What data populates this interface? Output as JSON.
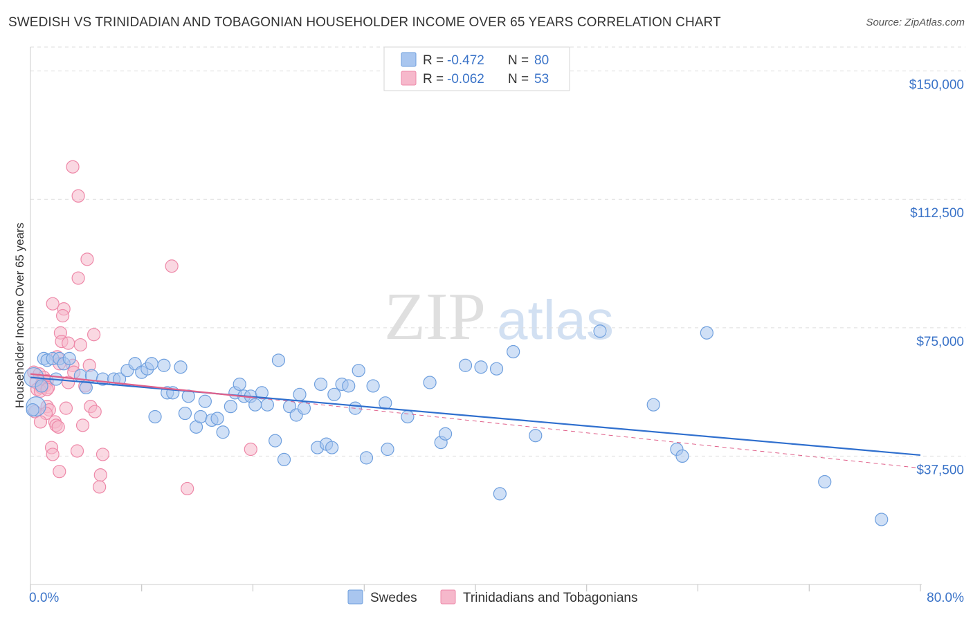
{
  "title": "SWEDISH VS TRINIDADIAN AND TOBAGONIAN HOUSEHOLDER INCOME OVER 65 YEARS CORRELATION CHART",
  "source": "Source: ZipAtlas.com",
  "watermark": {
    "zip": "ZIP",
    "atlas": "atlas"
  },
  "legend": {
    "r_label": "R =",
    "n_label": "N =",
    "rows": [
      {
        "r": "-0.472",
        "n": "80"
      },
      {
        "r": "-0.062",
        "n": "53"
      }
    ]
  },
  "bottom_legend": [
    "Swedes",
    "Trinidadians and Tobagonians"
  ],
  "colors": {
    "blue_fill": "#a9c6ef",
    "blue_stroke": "#6e9fde",
    "blue_line": "#2f6fce",
    "pink_fill": "#f6b8cb",
    "pink_stroke": "#ee88a8",
    "pink_line": "#e0608a",
    "axis_text": "#3a73c8",
    "grid": "#dddddd"
  },
  "chart_data": {
    "type": "scatter",
    "title": "SWEDISH VS TRINIDADIAN AND TOBAGONIAN HOUSEHOLDER INCOME OVER 65 YEARS CORRELATION CHART",
    "xlabel": "",
    "ylabel": "Householder Income Over 65 years",
    "xlim": [
      0,
      80
    ],
    "ylim": [
      0,
      157000
    ],
    "x_ticks_labels": [
      "0.0%",
      "80.0%"
    ],
    "y_ticks": [
      37500,
      75000,
      112500,
      150000
    ],
    "y_tick_labels": [
      "$37,500",
      "$75,000",
      "$112,500",
      "$150,000"
    ],
    "series": [
      {
        "name": "Swedes",
        "r": -0.472,
        "n": 80,
        "trend": {
          "x0": 0,
          "y0": 60500,
          "x1": 80,
          "y1": 37800
        },
        "points": [
          [
            0.3,
            60500
          ],
          [
            0.5,
            52000
          ],
          [
            1.2,
            66000
          ],
          [
            1.5,
            65500
          ],
          [
            2.0,
            66000
          ],
          [
            2.6,
            66000
          ],
          [
            3.0,
            64500
          ],
          [
            3.5,
            66000
          ],
          [
            4.5,
            61000
          ],
          [
            5.0,
            57500
          ],
          [
            5.5,
            61000
          ],
          [
            6.5,
            60000
          ],
          [
            7.5,
            60000
          ],
          [
            8.0,
            60000
          ],
          [
            8.7,
            62500
          ],
          [
            9.4,
            64500
          ],
          [
            10.0,
            62000
          ],
          [
            10.5,
            63000
          ],
          [
            10.9,
            64500
          ],
          [
            11.2,
            49000
          ],
          [
            12.0,
            64000
          ],
          [
            12.3,
            56000
          ],
          [
            12.8,
            56000
          ],
          [
            13.5,
            63500
          ],
          [
            13.9,
            50000
          ],
          [
            14.2,
            55000
          ],
          [
            14.9,
            46000
          ],
          [
            15.3,
            49000
          ],
          [
            15.7,
            53500
          ],
          [
            16.3,
            48000
          ],
          [
            16.8,
            48500
          ],
          [
            17.3,
            44500
          ],
          [
            18.0,
            52000
          ],
          [
            18.4,
            56000
          ],
          [
            18.8,
            58500
          ],
          [
            19.2,
            55000
          ],
          [
            19.8,
            55000
          ],
          [
            20.2,
            52500
          ],
          [
            20.8,
            56000
          ],
          [
            21.3,
            52500
          ],
          [
            22.0,
            42000
          ],
          [
            22.3,
            65500
          ],
          [
            22.8,
            36500
          ],
          [
            23.3,
            52000
          ],
          [
            23.9,
            49500
          ],
          [
            24.2,
            55500
          ],
          [
            24.6,
            51500
          ],
          [
            25.8,
            40000
          ],
          [
            26.1,
            58500
          ],
          [
            26.6,
            41000
          ],
          [
            27.1,
            40000
          ],
          [
            27.3,
            55500
          ],
          [
            28.0,
            58500
          ],
          [
            28.6,
            58000
          ],
          [
            29.2,
            51500
          ],
          [
            29.5,
            62500
          ],
          [
            30.2,
            37000
          ],
          [
            30.8,
            58000
          ],
          [
            31.9,
            53000
          ],
          [
            32.1,
            39500
          ],
          [
            33.9,
            49000
          ],
          [
            35.9,
            59000
          ],
          [
            36.9,
            41500
          ],
          [
            37.3,
            44000
          ],
          [
            39.1,
            64000
          ],
          [
            40.5,
            63500
          ],
          [
            41.9,
            63000
          ],
          [
            42.2,
            26500
          ],
          [
            43.4,
            68000
          ],
          [
            45.4,
            43500
          ],
          [
            51.2,
            74000
          ],
          [
            56.0,
            52500
          ],
          [
            58.1,
            39500
          ],
          [
            58.6,
            37500
          ],
          [
            60.8,
            73500
          ],
          [
            71.4,
            30000
          ],
          [
            76.5,
            19000
          ],
          [
            0.2,
            51000
          ],
          [
            1.0,
            58000
          ],
          [
            2.3,
            60000
          ]
        ]
      },
      {
        "name": "Trinidadians and Tobagonians",
        "r": -0.062,
        "n": 53,
        "trend": {
          "x0": 0,
          "y0": 61500,
          "x1": 80,
          "y1": 34000
        },
        "trend_solid_until_x": 20,
        "points": [
          [
            3.8,
            122000
          ],
          [
            4.3,
            113500
          ],
          [
            5.1,
            95000
          ],
          [
            4.3,
            89500
          ],
          [
            12.7,
            93000
          ],
          [
            2.0,
            82000
          ],
          [
            3.0,
            80500
          ],
          [
            2.9,
            78500
          ],
          [
            2.7,
            73500
          ],
          [
            5.7,
            73000
          ],
          [
            2.8,
            71000
          ],
          [
            3.4,
            70500
          ],
          [
            4.5,
            70000
          ],
          [
            2.4,
            66500
          ],
          [
            2.6,
            64500
          ],
          [
            3.8,
            64000
          ],
          [
            5.3,
            64000
          ],
          [
            3.9,
            62000
          ],
          [
            0.3,
            62000
          ],
          [
            0.8,
            61500
          ],
          [
            1.2,
            60500
          ],
          [
            1.5,
            59500
          ],
          [
            0.5,
            59000
          ],
          [
            1.0,
            58500
          ],
          [
            1.3,
            58000
          ],
          [
            1.6,
            57500
          ],
          [
            0.6,
            57000
          ],
          [
            3.4,
            59000
          ],
          [
            4.9,
            58000
          ],
          [
            1.0,
            57500
          ],
          [
            0.9,
            56500
          ],
          [
            1.5,
            57000
          ],
          [
            5.4,
            52000
          ],
          [
            3.2,
            51500
          ],
          [
            5.8,
            50500
          ],
          [
            1.5,
            52000
          ],
          [
            1.7,
            51000
          ],
          [
            1.4,
            50000
          ],
          [
            0.4,
            50500
          ],
          [
            2.2,
            47500
          ],
          [
            0.9,
            47500
          ],
          [
            2.3,
            46500
          ],
          [
            2.5,
            46000
          ],
          [
            4.7,
            46500
          ],
          [
            1.9,
            40000
          ],
          [
            4.2,
            39000
          ],
          [
            2.0,
            38000
          ],
          [
            6.5,
            38000
          ],
          [
            19.8,
            39500
          ],
          [
            2.6,
            33000
          ],
          [
            6.3,
            32000
          ],
          [
            6.2,
            28500
          ],
          [
            14.1,
            28000
          ]
        ]
      }
    ]
  }
}
